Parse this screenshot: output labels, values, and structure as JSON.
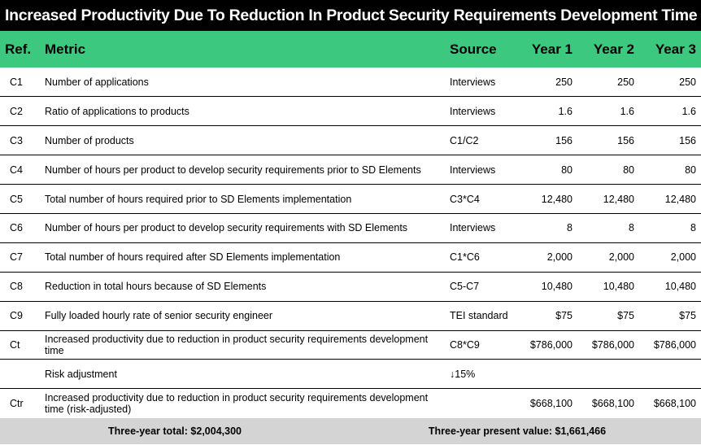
{
  "title": "Increased Productivity Due To Reduction In Product Security Requirements Development Time",
  "header": {
    "ref": "Ref.",
    "metric": "Metric",
    "source": "Source",
    "y1": "Year 1",
    "y2": "Year 2",
    "y3": "Year 3"
  },
  "rows": [
    {
      "ref": "C1",
      "metric": "Number of applications",
      "source": "Interviews",
      "y1": "250",
      "y2": "250",
      "y3": "250"
    },
    {
      "ref": "C2",
      "metric": "Ratio of applications to products",
      "source": "Interviews",
      "y1": "1.6",
      "y2": "1.6",
      "y3": "1.6"
    },
    {
      "ref": "C3",
      "metric": "Number of products",
      "source": "C1/C2",
      "y1": "156",
      "y2": "156",
      "y3": "156"
    },
    {
      "ref": "C4",
      "metric": "Number of hours per product to develop security requirements prior to SD Elements",
      "source": "Interviews",
      "y1": "80",
      "y2": "80",
      "y3": "80"
    },
    {
      "ref": "C5",
      "metric": "Total number of hours required prior to SD Elements implementation",
      "source": "C3*C4",
      "y1": "12,480",
      "y2": "12,480",
      "y3": "12,480"
    },
    {
      "ref": "C6",
      "metric": "Number of hours per product to develop security requirements with SD Elements",
      "source": "Interviews",
      "y1": "8",
      "y2": "8",
      "y3": "8"
    },
    {
      "ref": "C7",
      "metric": "Total number of hours required after SD Elements implementation",
      "source": "C1*C6",
      "y1": "2,000",
      "y2": "2,000",
      "y3": "2,000"
    },
    {
      "ref": "C8",
      "metric": "Reduction in total hours because of SD Elements",
      "source": "C5-C7",
      "y1": "10,480",
      "y2": "10,480",
      "y3": "10,480"
    },
    {
      "ref": "C9",
      "metric": "Fully loaded hourly rate of senior security engineer",
      "source": "TEI standard",
      "y1": "$75",
      "y2": "$75",
      "y3": "$75"
    },
    {
      "ref": "Ct",
      "metric": "Increased productivity due to reduction in product security requirements development time",
      "source": "C8*C9",
      "y1": "$786,000",
      "y2": "$786,000",
      "y3": "$786,000"
    },
    {
      "ref": "",
      "metric": "Risk adjustment",
      "source": "↓15%",
      "y1": "",
      "y2": "",
      "y3": ""
    },
    {
      "ref": "Ctr",
      "metric": "Increased productivity due to reduction in product security requirements development time (risk-adjusted)",
      "source": "",
      "y1": "$668,100",
      "y2": "$668,100",
      "y3": "$668,100"
    }
  ],
  "footer": {
    "three_year_total": "Three-year total: $2,004,300",
    "present_value": "Three-year present value: $1,661,466"
  },
  "colors": {
    "title_bg": "#000000",
    "header_bg": "#3cc97f",
    "footer_bg": "#d4d4d4"
  }
}
